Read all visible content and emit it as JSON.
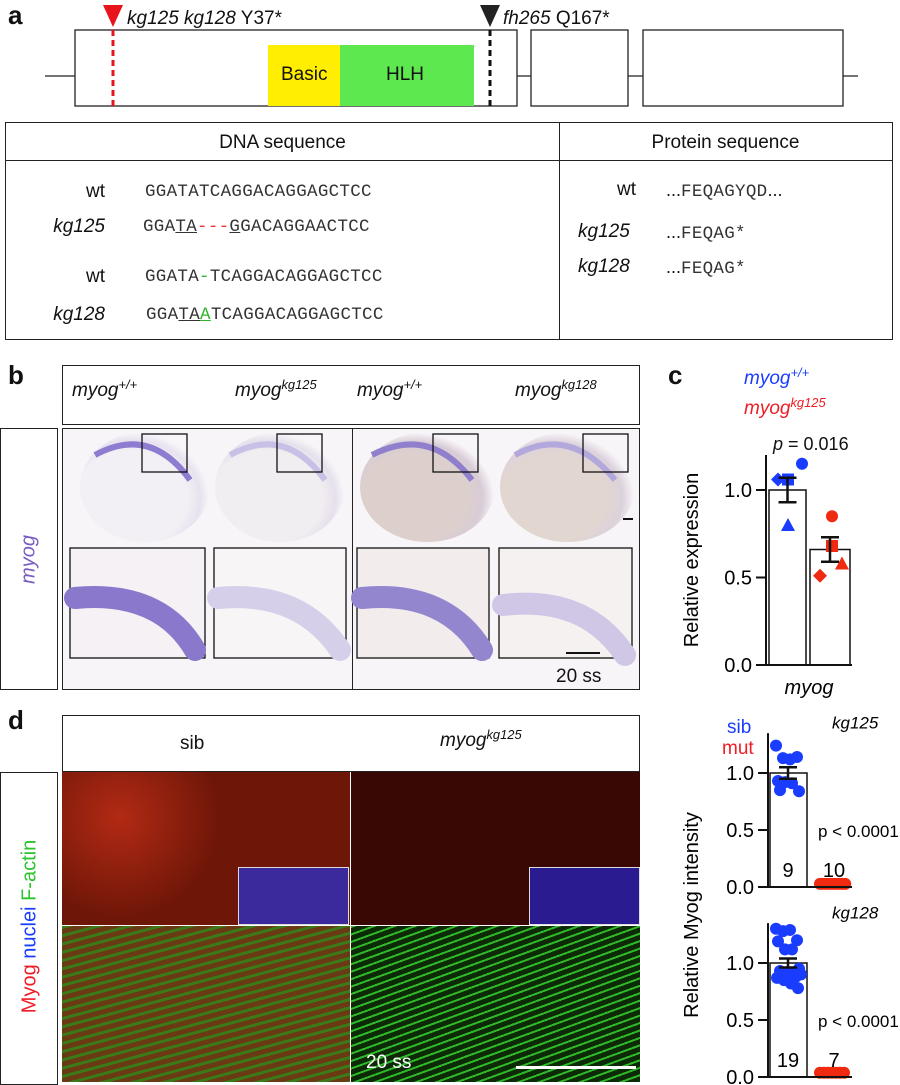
{
  "panel_a": {
    "label": "a",
    "mut1": {
      "alleles": "kg125 kg128",
      "change": "Y37*",
      "color": "#e8141c"
    },
    "mut2": {
      "allele": "fh265",
      "change": "Q167*"
    },
    "domains": {
      "basic": "Basic",
      "hlh": "HLH",
      "basic_color": "#ffee00",
      "hlh_color": "#5ce84e"
    },
    "table": {
      "dna_header": "DNA sequence",
      "protein_header": "Protein sequence",
      "dna_rows": [
        {
          "label": "wt",
          "seq": [
            "GGATATCAGGACAGGAGCTCC"
          ]
        },
        {
          "label": "kg125",
          "seq": [
            "GGA",
            "TA",
            "---",
            "G",
            "GACAGGAACTCC"
          ]
        },
        {
          "label": "wt",
          "seq": [
            "GGATA",
            "-",
            "TCAGGACAGGAGCTCC"
          ]
        },
        {
          "label": "kg128",
          "seq": [
            "GGA",
            "TA",
            "A",
            "TCAGGACAGGAGCTCC"
          ]
        }
      ],
      "protein_rows": [
        {
          "label": "wt",
          "prefix": "...",
          "seq": "FEQAGYQD",
          "suffix": "..."
        },
        {
          "label": "kg125",
          "prefix": "...",
          "seq": "FEQAG*"
        },
        {
          "label": "kg128",
          "prefix": "...",
          "seq": "FEQAG*"
        }
      ]
    }
  },
  "panel_b": {
    "label": "b",
    "row_label": "myog",
    "gene": "myog",
    "columns": [
      {
        "sup": "+/+"
      },
      {
        "sup": "kg125"
      },
      {
        "sup": "+/+"
      },
      {
        "sup": "kg128"
      }
    ],
    "stage": "20 ss"
  },
  "panel_c": {
    "label": "c",
    "legend": {
      "wt": "myog",
      "wt_sup": "+/+",
      "mut": "myog",
      "mut_sup": "kg125"
    },
    "pvalue_p": "p",
    "pvalue": " = 0.016"
  },
  "panel_d": {
    "label": "d",
    "col_sib": "sib",
    "col_mut": "myog",
    "col_mut_sup": "kg125",
    "row_label": {
      "a": "Myog",
      "b": "nuclei",
      "c": "F-actin"
    },
    "stage": "20 ss",
    "legend": {
      "sib": "sib",
      "mut": "mut"
    }
  },
  "colors": {
    "wt": "#1a3cff",
    "mut": "#ee1c24",
    "mut_marker": "#f02a10"
  },
  "chart_data": [
    {
      "type": "bar",
      "title": "",
      "xlabel": "myog",
      "ylabel": "Relative expression",
      "ylim": [
        0,
        1.2
      ],
      "yticks": [
        "0.0",
        "0.5",
        "1.0"
      ],
      "ytick_values": [
        0,
        0.5,
        1.0
      ],
      "series": [
        {
          "name": "myog+/+",
          "mean": 1.0,
          "sem": 0.07,
          "points": [
            {
              "shape": "circle",
              "v": 1.15
            },
            {
              "shape": "diamond",
              "v": 1.06
            },
            {
              "shape": "square",
              "v": 1.06
            },
            {
              "shape": "triangle",
              "v": 0.8
            }
          ]
        },
        {
          "name": "myogkg125",
          "mean": 0.66,
          "sem": 0.07,
          "points": [
            {
              "shape": "circle",
              "v": 0.85
            },
            {
              "shape": "square",
              "v": 0.68
            },
            {
              "shape": "triangle",
              "v": 0.58
            },
            {
              "shape": "diamond",
              "v": 0.51
            }
          ]
        }
      ],
      "annotation": "p = 0.016"
    },
    {
      "type": "bar",
      "title": "kg125",
      "ylabel": "Relative Myog intensity",
      "ylim": [
        0,
        1.2
      ],
      "yticks": [
        "0.0",
        "0.5",
        "1.0"
      ],
      "ytick_values": [
        0,
        0.5,
        1.0
      ],
      "series": [
        {
          "name": "sib",
          "mean": 1.0,
          "sem": 0.05,
          "n": "9",
          "points": [
            1.24,
            1.13,
            1.12,
            1.14,
            0.93,
            0.92,
            0.91,
            0.84,
            0.85
          ]
        },
        {
          "name": "mut",
          "mean": 0.0,
          "n": "10",
          "points": [
            0.01,
            0.01,
            0.01,
            0.01,
            0.01,
            0.01,
            0.01,
            0.01,
            0.01,
            0.01
          ]
        }
      ],
      "annotation": "p < 0.0001"
    },
    {
      "type": "bar",
      "title": "kg128",
      "ylabel": "Relative Myog intensity",
      "ylim": [
        0,
        1.2
      ],
      "yticks": [
        "0.0",
        "0.5",
        "1.0"
      ],
      "ytick_values": [
        0,
        0.5,
        1.0
      ],
      "series": [
        {
          "name": "sib",
          "mean": 1.0,
          "sem": 0.04,
          "n": "19",
          "points": [
            1.3,
            1.28,
            1.29,
            1.2,
            1.19,
            1.12,
            1.12,
            0.95,
            0.93,
            0.92,
            0.91,
            0.9,
            0.9,
            0.89,
            0.88,
            0.87,
            0.85,
            0.82,
            0.78
          ]
        },
        {
          "name": "mut",
          "mean": 0.0,
          "n": "7",
          "points": [
            0.02,
            0.02,
            0.02,
            0.02,
            0.02,
            0.02,
            0.02
          ]
        }
      ],
      "annotation": "p < 0.0001"
    }
  ]
}
